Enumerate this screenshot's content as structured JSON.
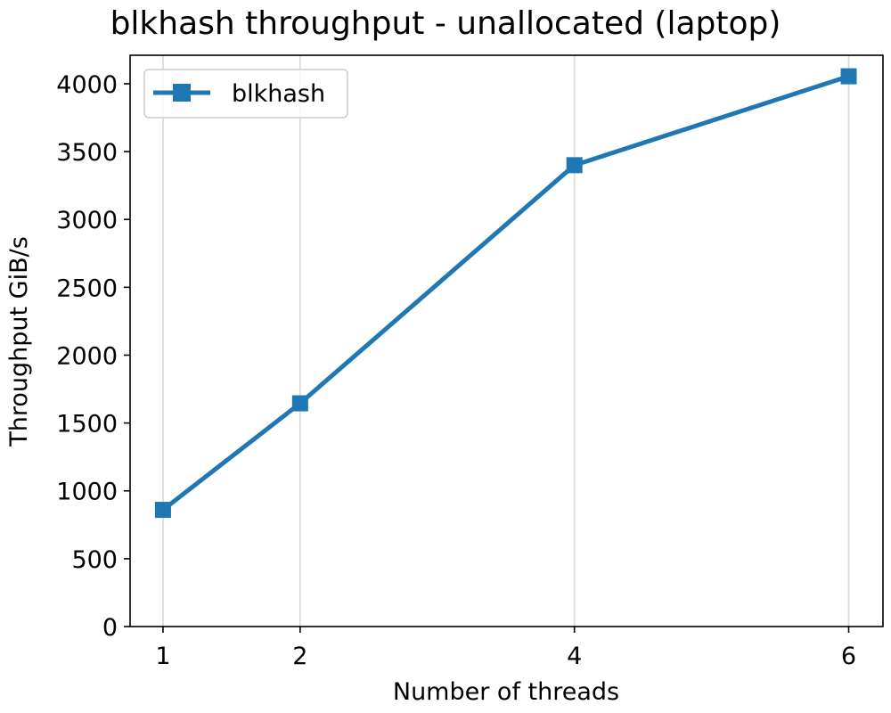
{
  "chart_data": {
    "type": "line",
    "title": "blkhash throughput - unallocated (laptop)",
    "xlabel": "Number of threads",
    "ylabel": "Throughput GiB/s",
    "x": [
      1,
      2,
      4,
      6
    ],
    "x_ticks": [
      "1",
      "2",
      "4",
      "6"
    ],
    "y_ticks": [
      "0",
      "500",
      "1000",
      "1500",
      "2000",
      "2500",
      "3000",
      "3500",
      "4000"
    ],
    "y_tick_values": [
      0,
      500,
      1000,
      1500,
      2000,
      2500,
      3000,
      3500,
      4000
    ],
    "xlim": [
      0.76,
      6.25
    ],
    "ylim": [
      0,
      4210
    ],
    "series": [
      {
        "name": "blkhash",
        "x": [
          1,
          2,
          4,
          6
        ],
        "values": [
          860,
          1645,
          3400,
          4055
        ],
        "color": "#1f77b4",
        "marker": "square"
      }
    ],
    "grid": "vertical",
    "grid_color": "#d8d8d8",
    "legend_position": "top-left"
  }
}
